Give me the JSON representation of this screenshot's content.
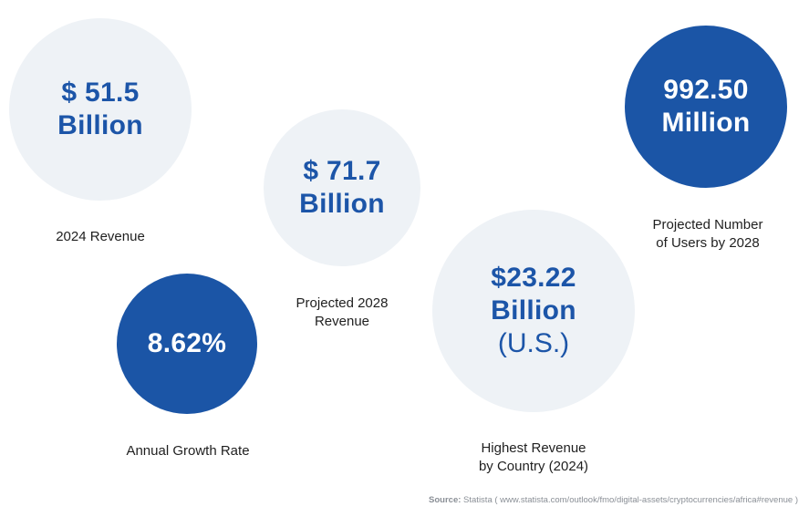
{
  "chart_data": {
    "type": "infographic-bubbles",
    "stats": [
      {
        "id": "revenue-2024",
        "value_lines": [
          "$ 51.5",
          "Billion"
        ],
        "label_lines": [
          "2024 Revenue"
        ],
        "style": "light"
      },
      {
        "id": "projected-revenue-2028",
        "value_lines": [
          "$ 71.7",
          "Billion"
        ],
        "label_lines": [
          "Projected 2028",
          "Revenue"
        ],
        "style": "light"
      },
      {
        "id": "annual-growth-rate",
        "value_lines": [
          "8.62%"
        ],
        "label_lines": [
          "Annual Growth Rate"
        ],
        "style": "dark"
      },
      {
        "id": "highest-revenue-country",
        "value_lines": [
          "$23.22",
          "Billion"
        ],
        "sub_line": "(U.S.)",
        "label_lines": [
          "Highest Revenue",
          "by Country (2024)"
        ],
        "style": "light"
      },
      {
        "id": "projected-users-2028",
        "value_lines": [
          "992.50",
          "Million"
        ],
        "label_lines": [
          "Projected Number",
          "of Users by 2028"
        ],
        "style": "dark"
      }
    ]
  },
  "source": {
    "label": "Source:",
    "text": "Statista ( www.statista.com/outlook/fmo/digital-assets/cryptocurrencies/africa#revenue )"
  },
  "colors": {
    "light_circle": "#eef2f6",
    "dark_circle": "#1b55a6",
    "value_text_on_light": "#1c55a8"
  }
}
